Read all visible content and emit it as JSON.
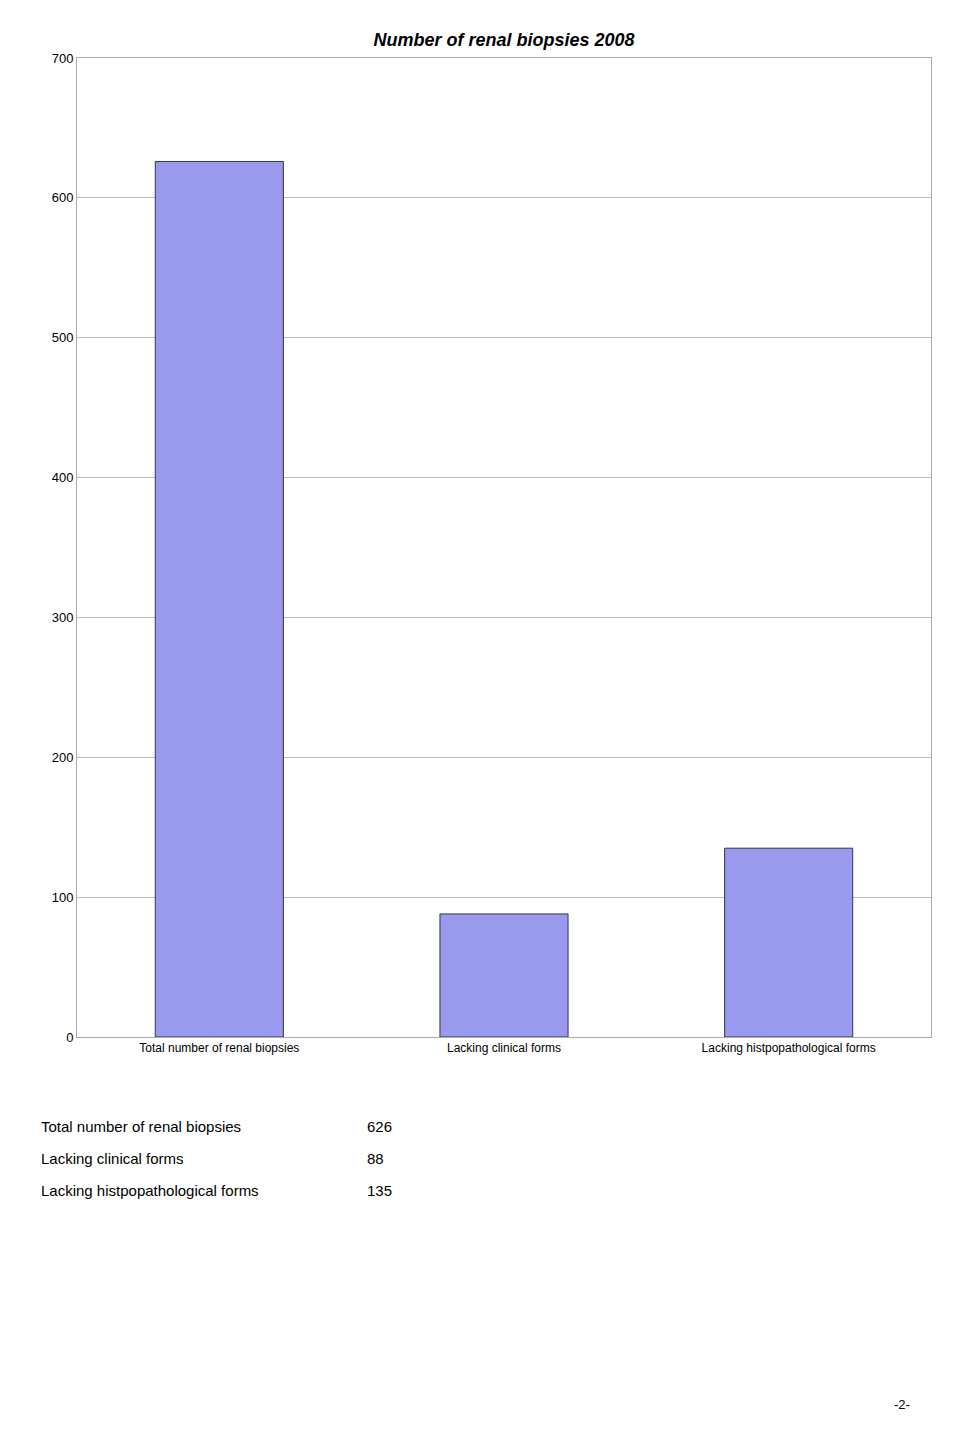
{
  "chart_data": {
    "type": "bar",
    "title": "Number of renal biopsies 2008",
    "categories": [
      "Total number of renal biopsies",
      "Lacking clinical forms",
      "Lacking histpopathological forms"
    ],
    "values": [
      626,
      88,
      135
    ],
    "color": "#9999ee",
    "ylim": [
      0,
      700
    ],
    "yticks": [
      0,
      100,
      200,
      300,
      400,
      500,
      600,
      700
    ],
    "grid": true,
    "annotations": [
      [
        "Total number of renal biopsies",
        "626"
      ],
      [
        "Lacking clinical forms",
        "88"
      ],
      [
        "Lacking histpopathological forms",
        "135"
      ],
      [
        "-2-"
      ]
    ]
  }
}
